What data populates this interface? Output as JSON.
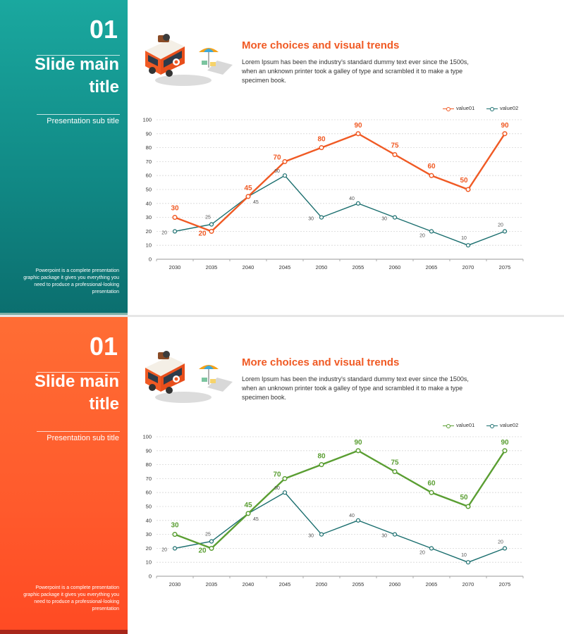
{
  "slides": [
    {
      "number": "01",
      "title": "Slide main title",
      "subtitle": "Presentation sub title",
      "description": "Powerpoint is a complete presentation graphic package it gives you everything you need to produce a professional-looking presentation",
      "heading": "More choices and visual trends",
      "body": "Lorem Ipsum has been the industry's standard dummy text ever since the 1500s, when an unknown printer took a galley of type and scrambled it to make a type specimen book.",
      "accent": "#f05a24",
      "series1_color": "#f05a24",
      "series2_color": "#1a6e6e"
    },
    {
      "number": "01",
      "title": "Slide main title",
      "subtitle": "Presentation sub title",
      "description": "Powerpoint is a complete presentation graphic package it gives you everything you need to produce a professional-looking presentation",
      "heading": "More choices and visual trends",
      "body": "Lorem Ipsum has been the industry's standard dummy text ever since the 1500s, when an unknown printer took a galley of type and scrambled it to make a type specimen book.",
      "accent": "#f05a24",
      "series1_color": "#5a9e32",
      "series2_color": "#1a6e6e"
    }
  ],
  "chart_data": [
    {
      "type": "line",
      "categories": [
        "2030",
        "2035",
        "2040",
        "2045",
        "2050",
        "2055",
        "2060",
        "2065",
        "2070",
        "2075"
      ],
      "series": [
        {
          "name": "value01",
          "values": [
            30,
            20,
            45,
            70,
            80,
            90,
            75,
            60,
            50,
            90
          ]
        },
        {
          "name": "value02",
          "values": [
            20,
            25,
            45,
            60,
            30,
            40,
            30,
            20,
            10,
            20
          ]
        }
      ],
      "ylim": [
        0,
        100
      ],
      "yticks": [
        0,
        10,
        20,
        30,
        40,
        50,
        60,
        70,
        80,
        90,
        100
      ],
      "legend": "top-right",
      "grid": true
    },
    {
      "type": "line",
      "categories": [
        "2030",
        "2035",
        "2040",
        "2045",
        "2050",
        "2055",
        "2060",
        "2065",
        "2070",
        "2075"
      ],
      "series": [
        {
          "name": "value01",
          "values": [
            30,
            20,
            45,
            70,
            80,
            90,
            75,
            60,
            50,
            90
          ]
        },
        {
          "name": "value02",
          "values": [
            20,
            25,
            45,
            60,
            30,
            40,
            30,
            20,
            10,
            20
          ]
        }
      ],
      "ylim": [
        0,
        100
      ],
      "yticks": [
        0,
        10,
        20,
        30,
        40,
        50,
        60,
        70,
        80,
        90,
        100
      ],
      "legend": "top-right",
      "grid": true
    }
  ]
}
